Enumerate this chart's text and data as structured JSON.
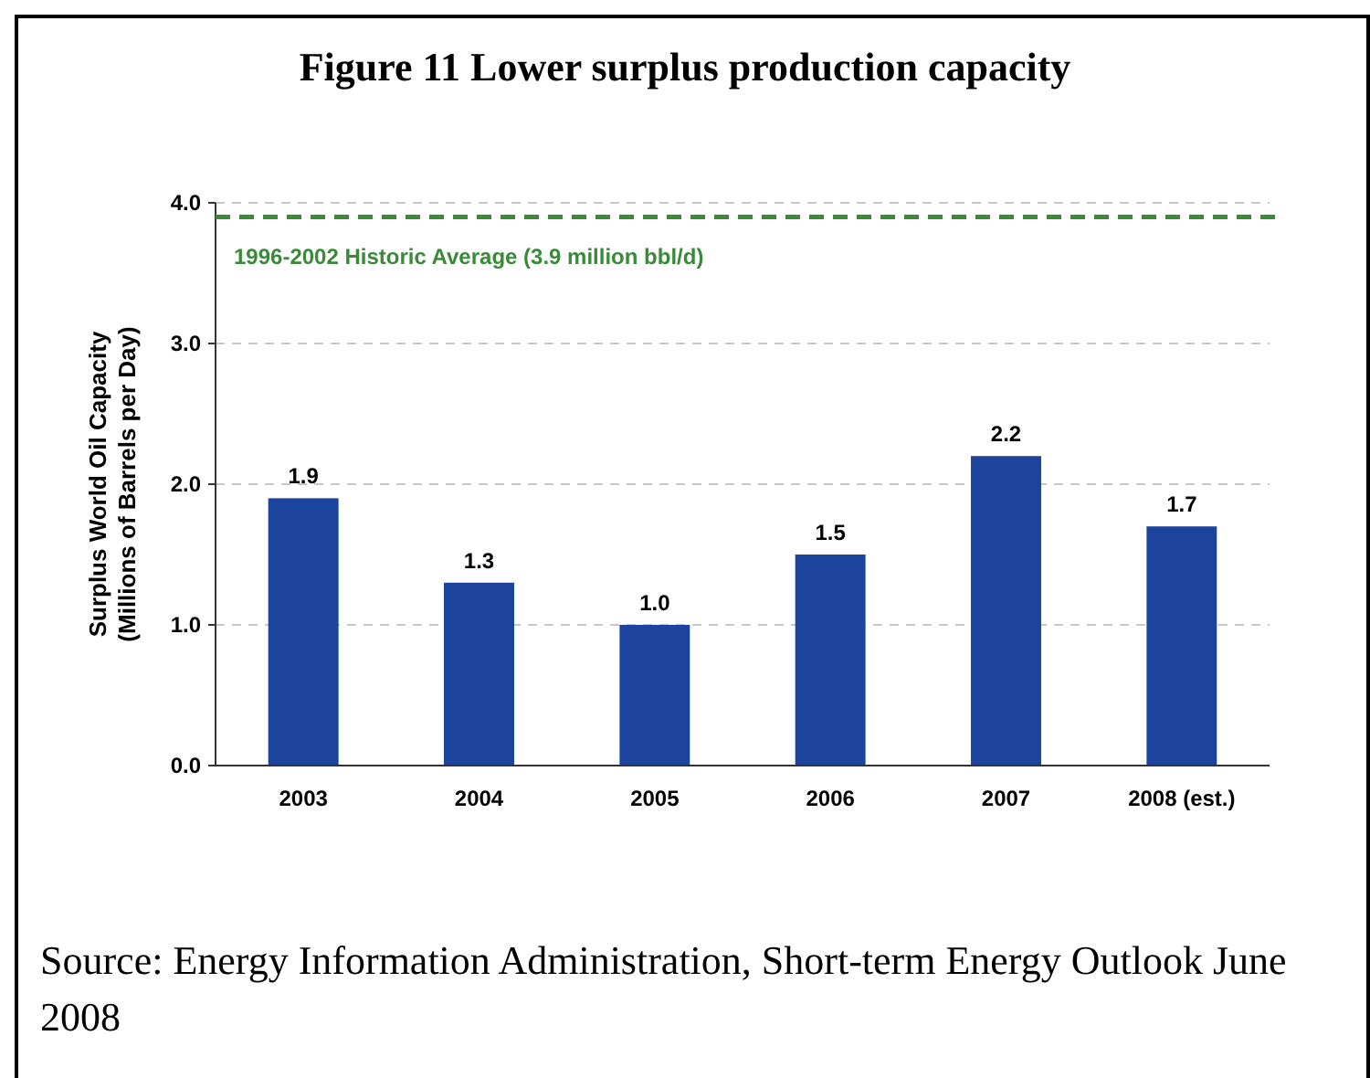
{
  "chart_data": {
    "type": "bar",
    "title": "Figure 11 Lower surplus production capacity",
    "ylabel": "Surplus World Oil Capacity\n(Millions of Barrels per Day)",
    "categories": [
      "2003",
      "2004",
      "2005",
      "2006",
      "2007",
      "2008 (est.)"
    ],
    "values": [
      1.9,
      1.3,
      1.0,
      1.5,
      2.2,
      1.7
    ],
    "color": "#1c449c",
    "value_labels": [
      "1.9",
      "1.3",
      "1.0",
      "1.5",
      "2.2",
      "1.7"
    ],
    "ylim": [
      0,
      4
    ],
    "yticks": [
      {
        "value": 0,
        "label": "0.0"
      },
      {
        "value": 1,
        "label": "1.0"
      },
      {
        "value": 2,
        "label": "2.0"
      },
      {
        "value": 3,
        "label": "3.0"
      },
      {
        "value": 4,
        "label": "4.0"
      }
    ],
    "grid": "y",
    "ref_lines": [
      {
        "axis": "y",
        "value": 3.9,
        "label": "1996-2002 Historic Average (3.9 million bbl/d)",
        "color": "#3a8a3a",
        "line_style": "dashed"
      }
    ],
    "annotations": [
      "Source: Energy Information Administration, Short-term Energy Outlook June 2008"
    ]
  }
}
